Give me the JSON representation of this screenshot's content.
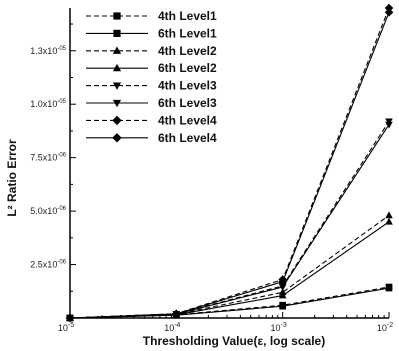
{
  "chart_data": {
    "type": "line",
    "title": "",
    "xlabel": "Thresholding Value(ε, log scale)",
    "ylabel": "L² Ratio Error",
    "x_scale": "log",
    "xlim": [
      1e-05,
      0.01
    ],
    "ylim": [
      0,
      1.45e-05
    ],
    "grid": false,
    "legend_position": "top-left",
    "x_ticks": [
      {
        "value": 1e-05,
        "base": "10",
        "exp": "-5"
      },
      {
        "value": 0.0001,
        "base": "10",
        "exp": "-4"
      },
      {
        "value": 0.001,
        "base": "10",
        "exp": "-3"
      },
      {
        "value": 0.01,
        "base": "10",
        "exp": "-2"
      }
    ],
    "y_ticks": [
      {
        "value": 2.5e-06,
        "mant": "2.5x10",
        "exp": "-06"
      },
      {
        "value": 5e-06,
        "mant": "5.0x10",
        "exp": "-06"
      },
      {
        "value": 7.5e-06,
        "mant": "7.5x10",
        "exp": "-06"
      },
      {
        "value": 1e-05,
        "mant": "1.0x10",
        "exp": "-05"
      },
      {
        "value": 1.25e-05,
        "mant": "1.3x10",
        "exp": "-05"
      }
    ],
    "x": [
      1e-05,
      0.0001,
      0.001,
      0.01
    ],
    "series": [
      {
        "name": "4th Level1",
        "marker": "square",
        "dash": true,
        "values": [
          0,
          1.5e-07,
          6e-07,
          1.45e-06
        ]
      },
      {
        "name": "6th Level1",
        "marker": "square",
        "dash": false,
        "values": [
          0,
          1.3e-07,
          5.5e-07,
          1.4e-06
        ]
      },
      {
        "name": "4th Level2",
        "marker": "triangle-up",
        "dash": true,
        "values": [
          0,
          1.7e-07,
          1.2e-06,
          4.8e-06
        ]
      },
      {
        "name": "6th Level2",
        "marker": "triangle-up",
        "dash": false,
        "values": [
          0,
          1.5e-07,
          1.05e-06,
          4.5e-06
        ]
      },
      {
        "name": "4th Level3",
        "marker": "triangle-down",
        "dash": true,
        "values": [
          0,
          1.9e-07,
          1.5e-06,
          9.2e-06
        ]
      },
      {
        "name": "6th Level3",
        "marker": "triangle-down",
        "dash": false,
        "values": [
          0,
          1.8e-07,
          1.45e-06,
          9.05e-06
        ]
      },
      {
        "name": "4th Level4",
        "marker": "diamond",
        "dash": true,
        "values": [
          0,
          2e-07,
          1.8e-06,
          1.45e-05
        ]
      },
      {
        "name": "6th Level4",
        "marker": "diamond",
        "dash": false,
        "values": [
          0,
          1.9e-07,
          1.7e-06,
          1.43e-05
        ]
      }
    ]
  }
}
